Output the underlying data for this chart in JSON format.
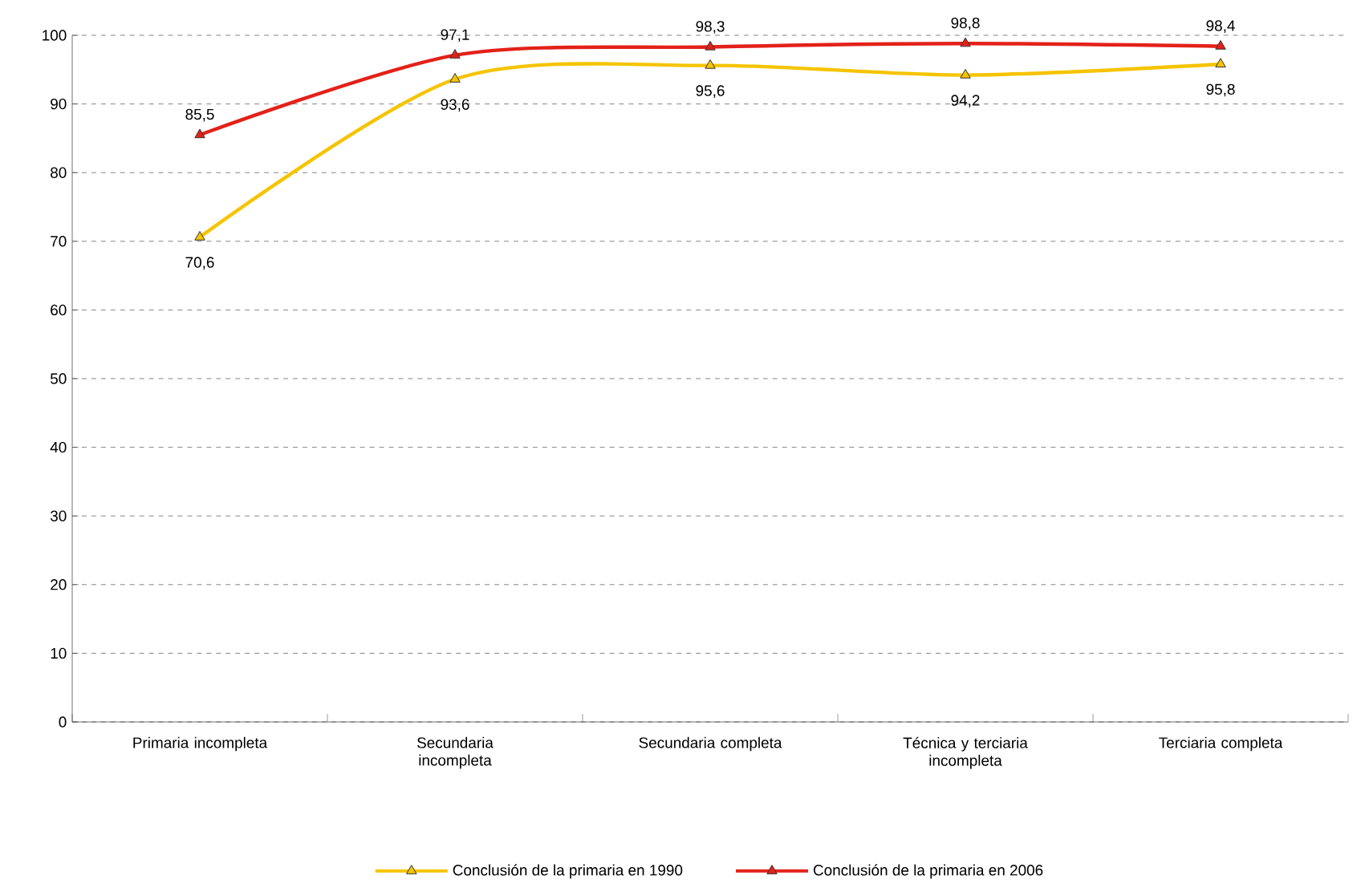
{
  "chart_data": {
    "type": "line",
    "categories": [
      "Primaria incompleta",
      "Secundaria incompleta",
      "Secundaria completa",
      "Técnica y terciaria incompleta",
      "Terciaria completa"
    ],
    "series": [
      {
        "name": "Conclusión de la primaria en 1990",
        "color": "#f5c400",
        "values": [
          70.6,
          93.6,
          95.6,
          94.2,
          95.8
        ],
        "value_labels": [
          "70,6",
          "93,6",
          "95,6",
          "94,2",
          "95,8"
        ]
      },
      {
        "name": "Conclusión de la primaria en 2006",
        "color": "#e32119",
        "values": [
          85.5,
          97.1,
          98.3,
          98.8,
          98.4
        ],
        "value_labels": [
          "85,5",
          "97,1",
          "98,3",
          "98,8",
          "98,4"
        ]
      }
    ],
    "ylim": [
      0,
      100
    ],
    "yticks": [
      0,
      10,
      20,
      30,
      40,
      50,
      60,
      70,
      80,
      90,
      100
    ],
    "grid": "y",
    "legend": "bottom",
    "marker": "triangle",
    "line_style": "solid"
  }
}
